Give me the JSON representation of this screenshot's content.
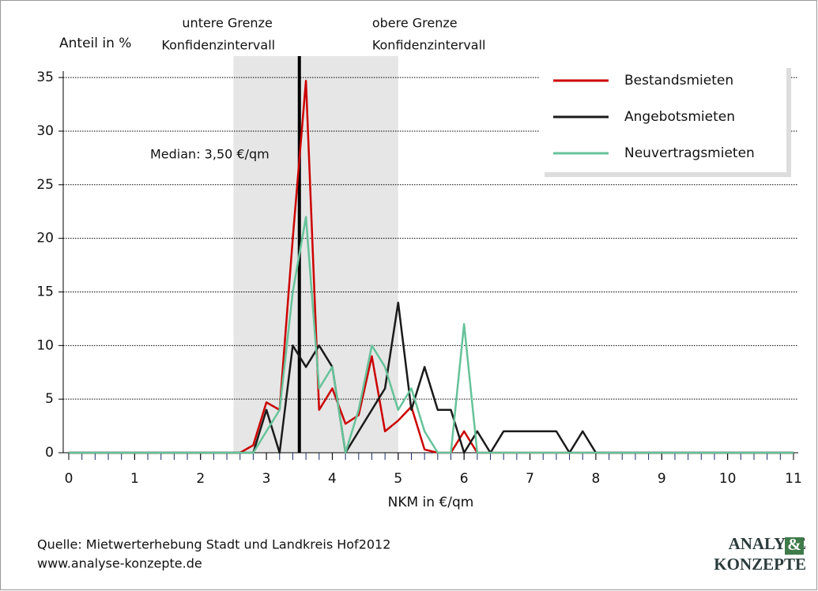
{
  "chart_data": {
    "type": "line",
    "y_axis_label": "Anteil in %",
    "x_axis_label": "NKM in €/qm",
    "x": [
      0,
      0.2,
      0.4,
      0.6,
      0.8,
      1,
      1.2,
      1.4,
      1.6,
      1.8,
      2,
      2.2,
      2.4,
      2.6,
      2.8,
      3,
      3.2,
      3.4,
      3.6,
      3.8,
      4,
      4.2,
      4.4,
      4.6,
      4.8,
      5,
      5.2,
      5.4,
      5.6,
      5.8,
      6,
      6.2,
      6.4,
      6.6,
      6.8,
      7,
      7.2,
      7.4,
      7.6,
      7.8,
      8,
      8.2,
      8.4,
      8.6,
      8.8,
      9,
      9.2,
      9.4,
      9.6,
      9.8,
      10,
      10.2,
      10.4,
      10.6,
      10.8,
      11
    ],
    "series": [
      {
        "name": "Bestandsmieten",
        "color": "#cc0000",
        "values": [
          0,
          0,
          0,
          0,
          0,
          0,
          0,
          0,
          0,
          0,
          0,
          0,
          0,
          0,
          0.7,
          4.7,
          4,
          20,
          34.7,
          4,
          6,
          2.7,
          3.5,
          9,
          2,
          3,
          4.3,
          0.3,
          0,
          0,
          2,
          0,
          0,
          0,
          0,
          0,
          0,
          0,
          0,
          0,
          0,
          0,
          0,
          0,
          0,
          0,
          0,
          0,
          0,
          0,
          0,
          0,
          0,
          0,
          0,
          0
        ]
      },
      {
        "name": "Angebotsmieten",
        "color": "#1a1a1a",
        "values": [
          0,
          0,
          0,
          0,
          0,
          0,
          0,
          0,
          0,
          0,
          0,
          0,
          0,
          0,
          0,
          4,
          0,
          10,
          8,
          10,
          8,
          0,
          2,
          4,
          6,
          14,
          4,
          8,
          4,
          4,
          0,
          2,
          0,
          2,
          2,
          2,
          2,
          2,
          0,
          2,
          0,
          0,
          0,
          0,
          0,
          0,
          0,
          0,
          0,
          0,
          0,
          0,
          0,
          0,
          0,
          0
        ]
      },
      {
        "name": "Neuvertragsmieten",
        "color": "#66c29a",
        "values": [
          0,
          0,
          0,
          0,
          0,
          0,
          0,
          0,
          0,
          0,
          0,
          0,
          0,
          0,
          0,
          2,
          4,
          15,
          22,
          6,
          8,
          0,
          4,
          10,
          8,
          4,
          6,
          2,
          0,
          0,
          12,
          0,
          0,
          0,
          0,
          0,
          0,
          0,
          0,
          0,
          0,
          0,
          0,
          0,
          0,
          0,
          0,
          0,
          0,
          0,
          0,
          0,
          0,
          0,
          0,
          0
        ]
      }
    ],
    "xlim": [
      0,
      11
    ],
    "xticks": [
      0,
      1,
      2,
      3,
      4,
      5,
      6,
      7,
      8,
      9,
      10,
      11
    ],
    "ylim": [
      0,
      37
    ],
    "yticks": [
      0,
      5,
      10,
      15,
      20,
      25,
      30,
      35
    ],
    "grid": true,
    "legend": "upper right",
    "confidence_interval": [
      2.5,
      5
    ],
    "confidence_labels": [
      [
        "untere Grenze",
        "Konfidenzintervall"
      ],
      [
        "obere Grenze",
        "Konfidenzintervall"
      ]
    ],
    "median": 3.5,
    "median_label": "Median: 3,50 €/qm",
    "source": [
      "Quelle: Mietwerterhebung Stadt und Landkreis Hof2012",
      "www.analyse-konzepte.de"
    ],
    "logo": [
      "ANALYSE",
      "&",
      "KONZEPTE"
    ]
  }
}
